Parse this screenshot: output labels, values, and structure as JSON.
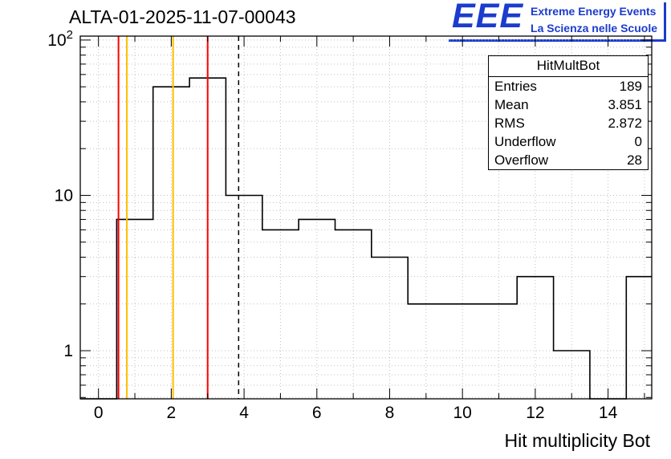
{
  "header": {
    "title": "ALTA-01-2025-11-07-00043"
  },
  "logo": {
    "eee": "EEE",
    "line1": "Extreme Energy Events",
    "line2": "La Scienza nelle Scuole",
    "color": "#1b3ccc"
  },
  "stats": {
    "title": "HitMultBot",
    "rows": [
      {
        "label": "Entries",
        "value": "189"
      },
      {
        "label": "Mean",
        "value": "3.851"
      },
      {
        "label": "RMS",
        "value": "2.872"
      },
      {
        "label": "Underflow",
        "value": "0"
      },
      {
        "label": "Overflow",
        "value": "28"
      }
    ]
  },
  "chart_data": {
    "type": "bar",
    "title": "ALTA-01-2025-11-07-00043",
    "xlabel": "Hit multiplicity Bot",
    "ylabel": "",
    "y_scale": "log",
    "grid": true,
    "x_range": [
      -0.5,
      15.2
    ],
    "y_range": [
      0.49,
      106
    ],
    "bin_width": 1,
    "bin_centers": [
      0,
      1,
      2,
      3,
      4,
      5,
      6,
      7,
      8,
      9,
      10,
      11,
      12,
      13,
      14,
      15
    ],
    "values": [
      0,
      7,
      50,
      57,
      10,
      6,
      7,
      6,
      4,
      2,
      2,
      2,
      3,
      1,
      0,
      3
    ],
    "x_ticks": [
      0,
      2,
      4,
      6,
      8,
      10,
      12,
      14
    ],
    "x_tick_labels": [
      "0",
      "2",
      "4",
      "6",
      "8",
      "10",
      "12",
      "14"
    ],
    "x_minor_step": 1,
    "y_tick_labels": [
      {
        "value": 1,
        "label": "1"
      },
      {
        "value": 10,
        "label": "10"
      },
      {
        "value": 100,
        "label": "10^2"
      }
    ],
    "marker_lines": [
      {
        "x": 0.55,
        "color": "#ff0000"
      },
      {
        "x": 0.78,
        "color": "#ffbf00"
      },
      {
        "x": 2.05,
        "color": "#ffbf00"
      },
      {
        "x": 3.0,
        "color": "#ff0000"
      }
    ],
    "mean_line": {
      "x": 3.851,
      "color": "#000000",
      "dash": true
    },
    "histogram_color": "#000000",
    "grid_color": "#c0c0c0"
  }
}
